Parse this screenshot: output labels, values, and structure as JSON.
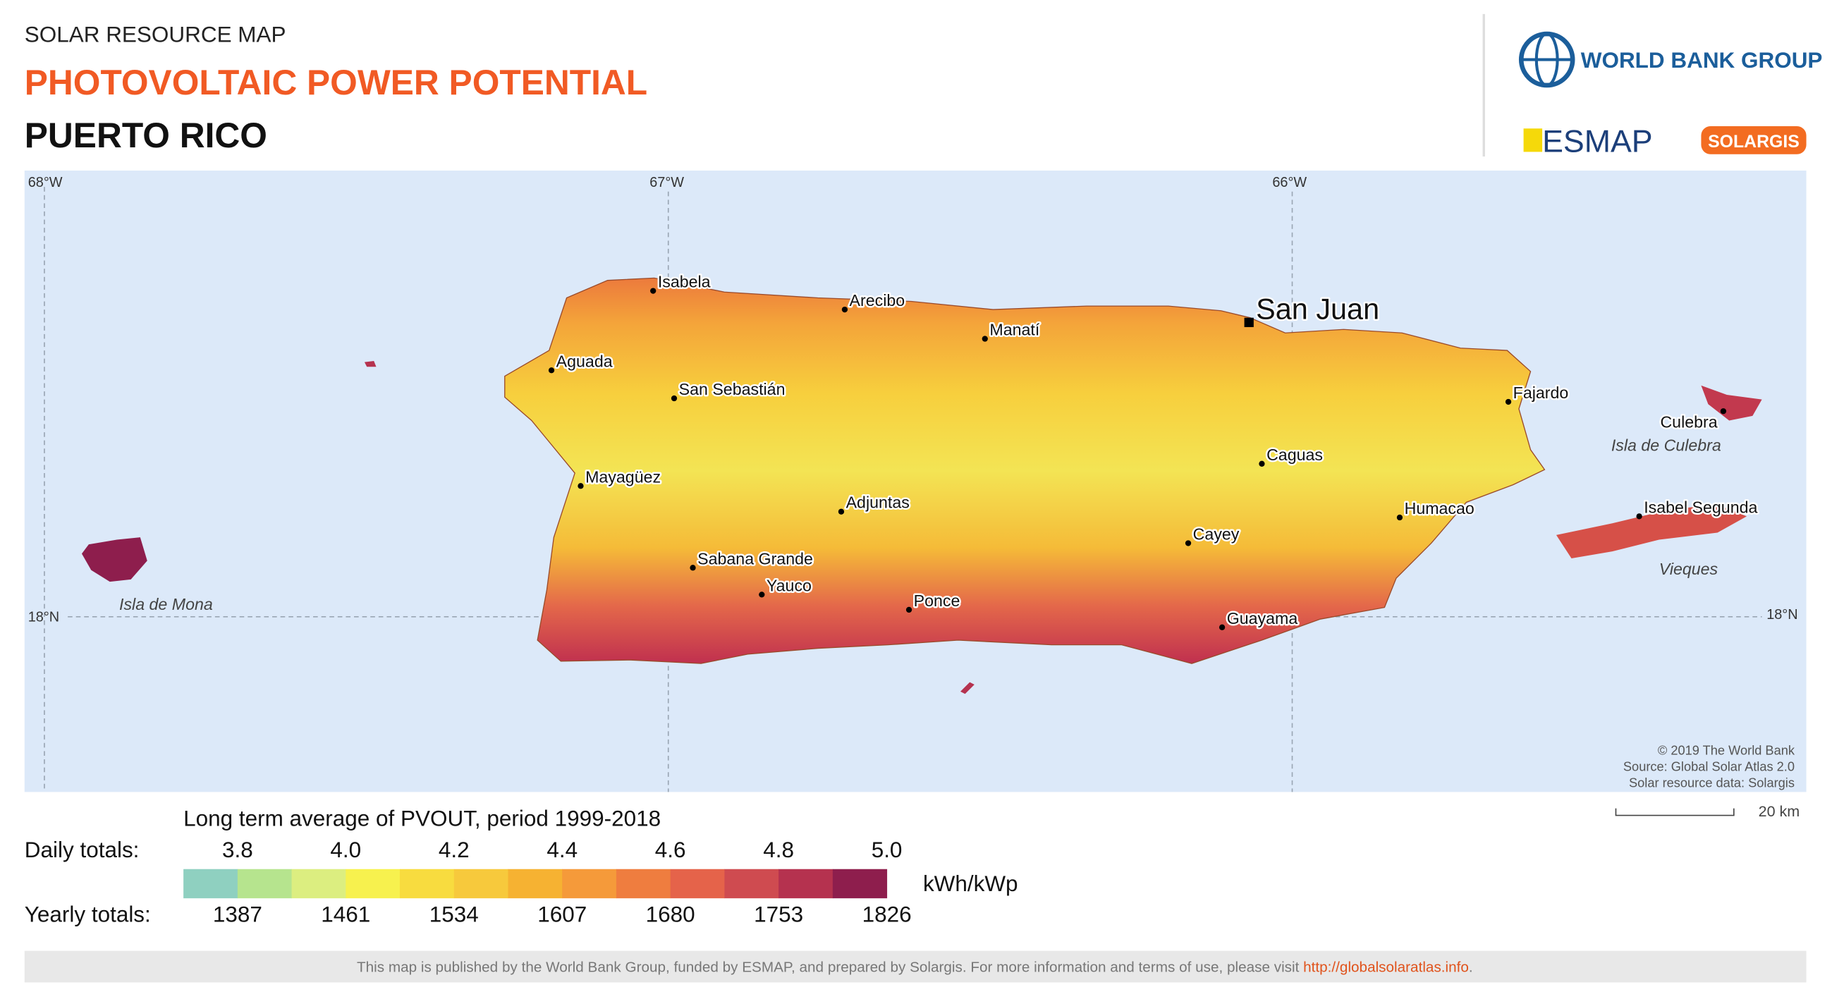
{
  "header": {
    "subtitle": "SOLAR RESOURCE MAP",
    "title": "PHOTOVOLTAIC POWER POTENTIAL",
    "region": "PUERTO RICO"
  },
  "logos": {
    "world_bank": "WORLD BANK GROUP",
    "esmap": "ESMAP",
    "solargis": "SOLARGIS"
  },
  "map": {
    "graticule": [
      "68°W",
      "67°W",
      "66°W",
      "18°N",
      "18°N"
    ],
    "capital": "San Juan",
    "places": [
      "Isabela",
      "Arecibo",
      "Manatí",
      "Aguada",
      "San Sebastián",
      "Mayagüez",
      "Adjuntas",
      "Sabana Grande",
      "Yauco",
      "Ponce",
      "Guayama",
      "Cayey",
      "Caguas",
      "Humacao",
      "Fajardo",
      "Culebra",
      "Isabel Segunda"
    ],
    "islands": [
      "Isla de Mona",
      "Isla de Culebra",
      "Vieques"
    ],
    "credits": [
      "© 2019 The World Bank",
      "Source: Global Solar Atlas 2.0",
      "Solar resource data: Solargis"
    ],
    "scale": "20 km"
  },
  "legend": {
    "title": "Long term average of PVOUT, period 1999-2018",
    "daily_label": "Daily totals:",
    "daily": [
      "3.8",
      "4.0",
      "4.2",
      "4.4",
      "4.6",
      "4.8",
      "5.0"
    ],
    "unit": "kWh/kWp",
    "yearly_label": "Yearly totals:",
    "yearly": [
      "1387",
      "1461",
      "1534",
      "1607",
      "1680",
      "1753",
      "1826"
    ],
    "colors": [
      "#8fd0c0",
      "#b6e48e",
      "#dcee80",
      "#f7f14e",
      "#f8dc3f",
      "#f7c93c",
      "#f6b232",
      "#f59a3a",
      "#ef7d3f",
      "#e5634a",
      "#cf4b50",
      "#b5324f",
      "#8e1e4d"
    ]
  },
  "footer": {
    "text": "This map is published by the World Bank Group, funded by ESMAP, and prepared by Solargis. For more information and terms of use, please visit ",
    "link": "http://globalsolaratlas.info",
    "end": "."
  }
}
